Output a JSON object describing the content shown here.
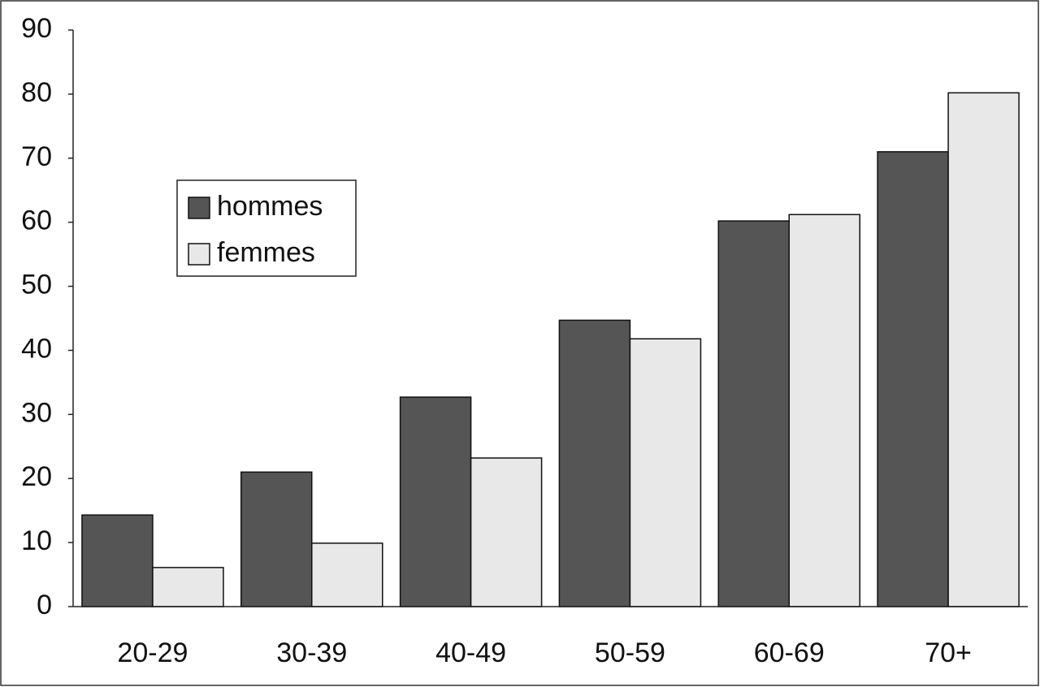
{
  "chart_data": {
    "type": "bar",
    "categories": [
      "20-29",
      "30-39",
      "40-49",
      "50-59",
      "60-69",
      "70+"
    ],
    "series": [
      {
        "name": "hommes",
        "color": "#555555",
        "values": [
          14.3,
          21.0,
          32.7,
          44.7,
          60.2,
          71.0
        ]
      },
      {
        "name": "femmes",
        "color": "#e8e8e8",
        "values": [
          6.1,
          9.9,
          23.2,
          41.8,
          61.2,
          80.2
        ]
      }
    ],
    "ylim": [
      0,
      90
    ],
    "yticks": [
      0,
      10,
      20,
      30,
      40,
      50,
      60,
      70,
      80,
      90
    ]
  }
}
